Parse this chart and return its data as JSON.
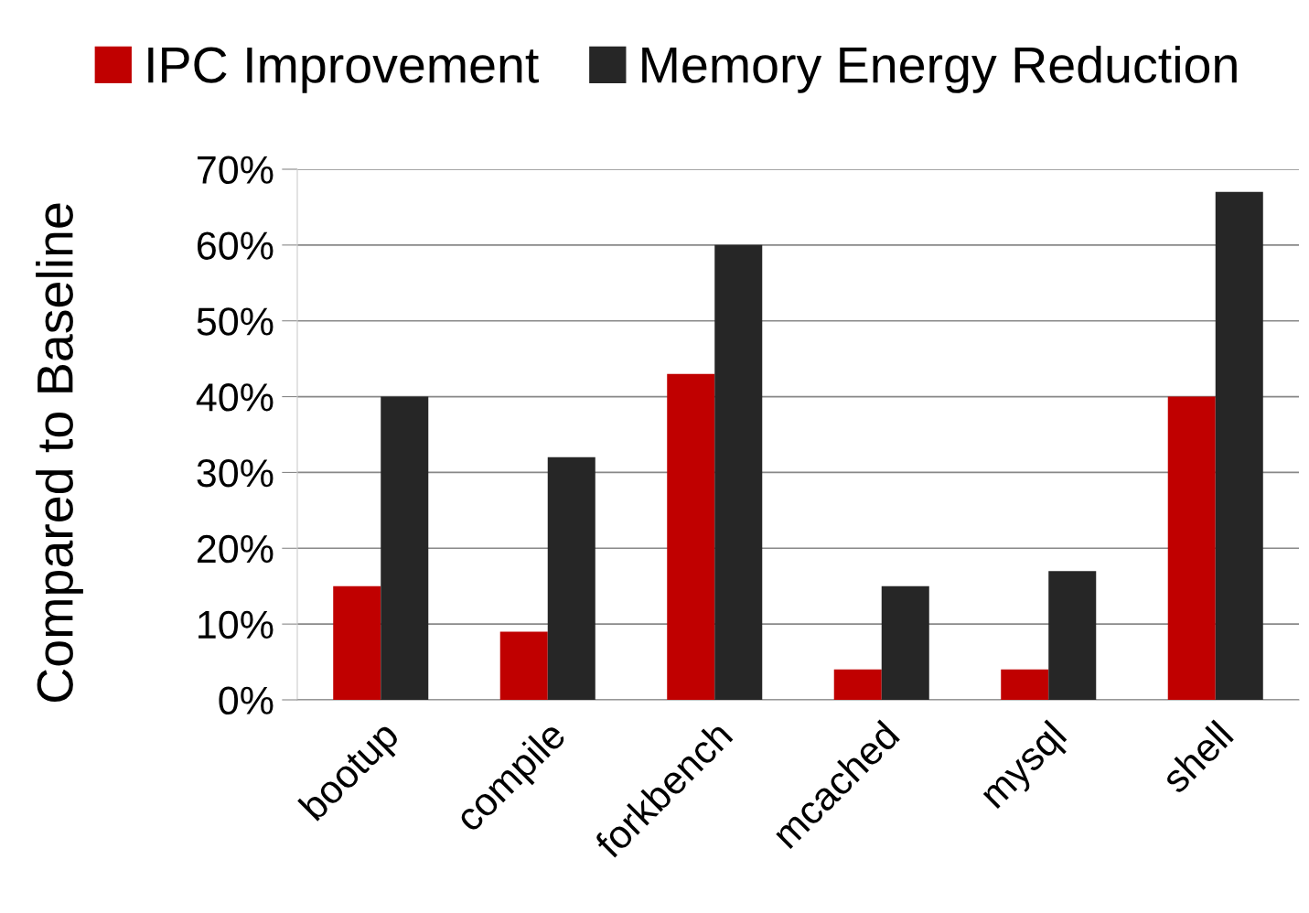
{
  "chart_data": {
    "type": "bar",
    "categories": [
      "bootup",
      "compile",
      "forkbench",
      "mcached",
      "mysql",
      "shell"
    ],
    "series": [
      {
        "name": "IPC Improvement",
        "color": "#c00000",
        "values": [
          15,
          9,
          43,
          4,
          4,
          40
        ]
      },
      {
        "name": "Memory Energy Reduction",
        "color": "#262626",
        "values": [
          40,
          32,
          60,
          15,
          17,
          67
        ]
      }
    ],
    "ylabel": "Compared to Baseline",
    "ylim": [
      0,
      70
    ],
    "yticks": [
      {
        "value": 0,
        "label": "0%"
      },
      {
        "value": 10,
        "label": "10%"
      },
      {
        "value": 20,
        "label": "20%"
      },
      {
        "value": 30,
        "label": "30%"
      },
      {
        "value": 40,
        "label": "40%"
      },
      {
        "value": 50,
        "label": "50%"
      },
      {
        "value": 60,
        "label": "60%"
      },
      {
        "value": 70,
        "label": "70%"
      }
    ],
    "grid": "y",
    "legend": "top"
  }
}
